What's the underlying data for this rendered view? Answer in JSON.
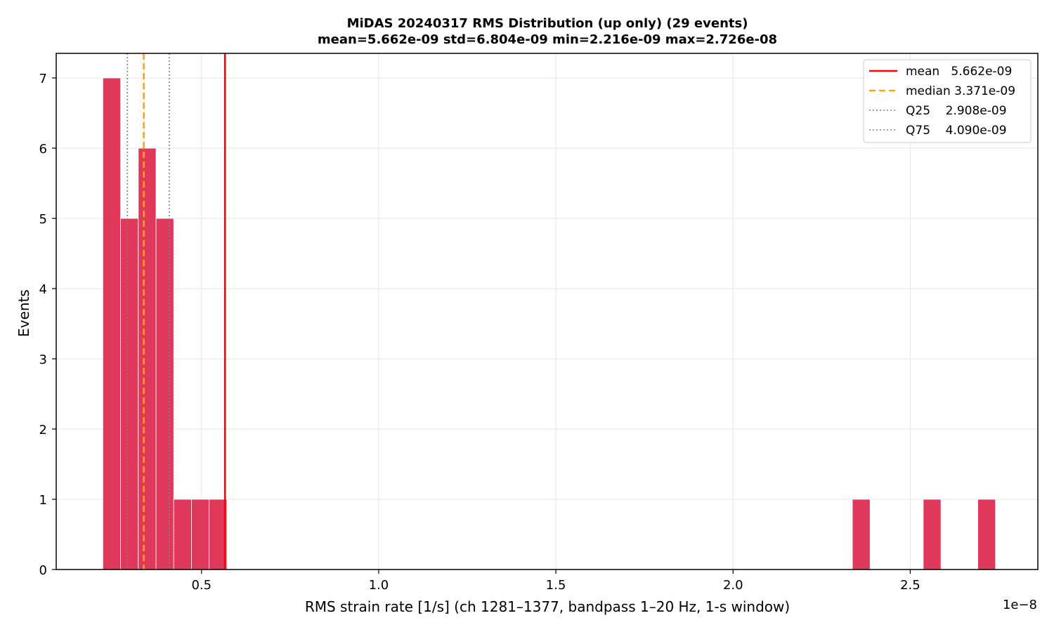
{
  "chart_data": {
    "type": "bar",
    "title_line1": "MiDAS 20240317  RMS Distribution  (up only)  (29 events)",
    "title_line2": "mean=5.662e-09  std=6.804e-09  min=2.216e-09  max=2.726e-08",
    "xlabel": "RMS strain rate [1/s]  (ch 1281–1377, bandpass 1–20 Hz, 1-s window)",
    "ylabel": "Events",
    "x_offset_label": "1e−8",
    "xlim": [
      0.09,
      2.86
    ],
    "ylim": [
      0,
      7.35
    ],
    "xticks": [
      0.5,
      1.0,
      1.5,
      2.0,
      2.5
    ],
    "xtick_labels": [
      "0.5",
      "1.0",
      "1.5",
      "2.0",
      "2.5"
    ],
    "yticks": [
      0,
      1,
      2,
      3,
      4,
      5,
      6,
      7
    ],
    "ytick_labels": [
      "0",
      "1",
      "2",
      "3",
      "4",
      "5",
      "6",
      "7"
    ],
    "grid": true,
    "bar_color": "#e0385a",
    "bins": [
      {
        "x0": 0.2216,
        "x1": 0.2716,
        "count": 7
      },
      {
        "x0": 0.2716,
        "x1": 0.3216,
        "count": 5
      },
      {
        "x0": 0.3216,
        "x1": 0.3716,
        "count": 6
      },
      {
        "x0": 0.3716,
        "x1": 0.4216,
        "count": 5
      },
      {
        "x0": 0.4216,
        "x1": 0.4716,
        "count": 1
      },
      {
        "x0": 0.4716,
        "x1": 0.5216,
        "count": 1
      },
      {
        "x0": 0.5216,
        "x1": 0.5716,
        "count": 1
      },
      {
        "x0": 2.3366,
        "x1": 2.3866,
        "count": 1
      },
      {
        "x0": 2.5366,
        "x1": 2.5866,
        "count": 1
      },
      {
        "x0": 2.6906,
        "x1": 2.7406,
        "count": 1
      }
    ],
    "reference_lines": [
      {
        "label": "mean   5.662e-09",
        "value": 0.5662,
        "color": "#ff0000",
        "style": "solid"
      },
      {
        "label": "median 3.371e-09",
        "value": 0.3371,
        "color": "#ffa500",
        "style": "dashed"
      },
      {
        "label": "Q25    2.908e-09",
        "value": 0.2908,
        "color": "#808080",
        "style": "dotted"
      },
      {
        "label": "Q75    4.090e-09",
        "value": 0.409,
        "color": "#808080",
        "style": "dotted"
      }
    ],
    "legend_position": "top-right"
  }
}
